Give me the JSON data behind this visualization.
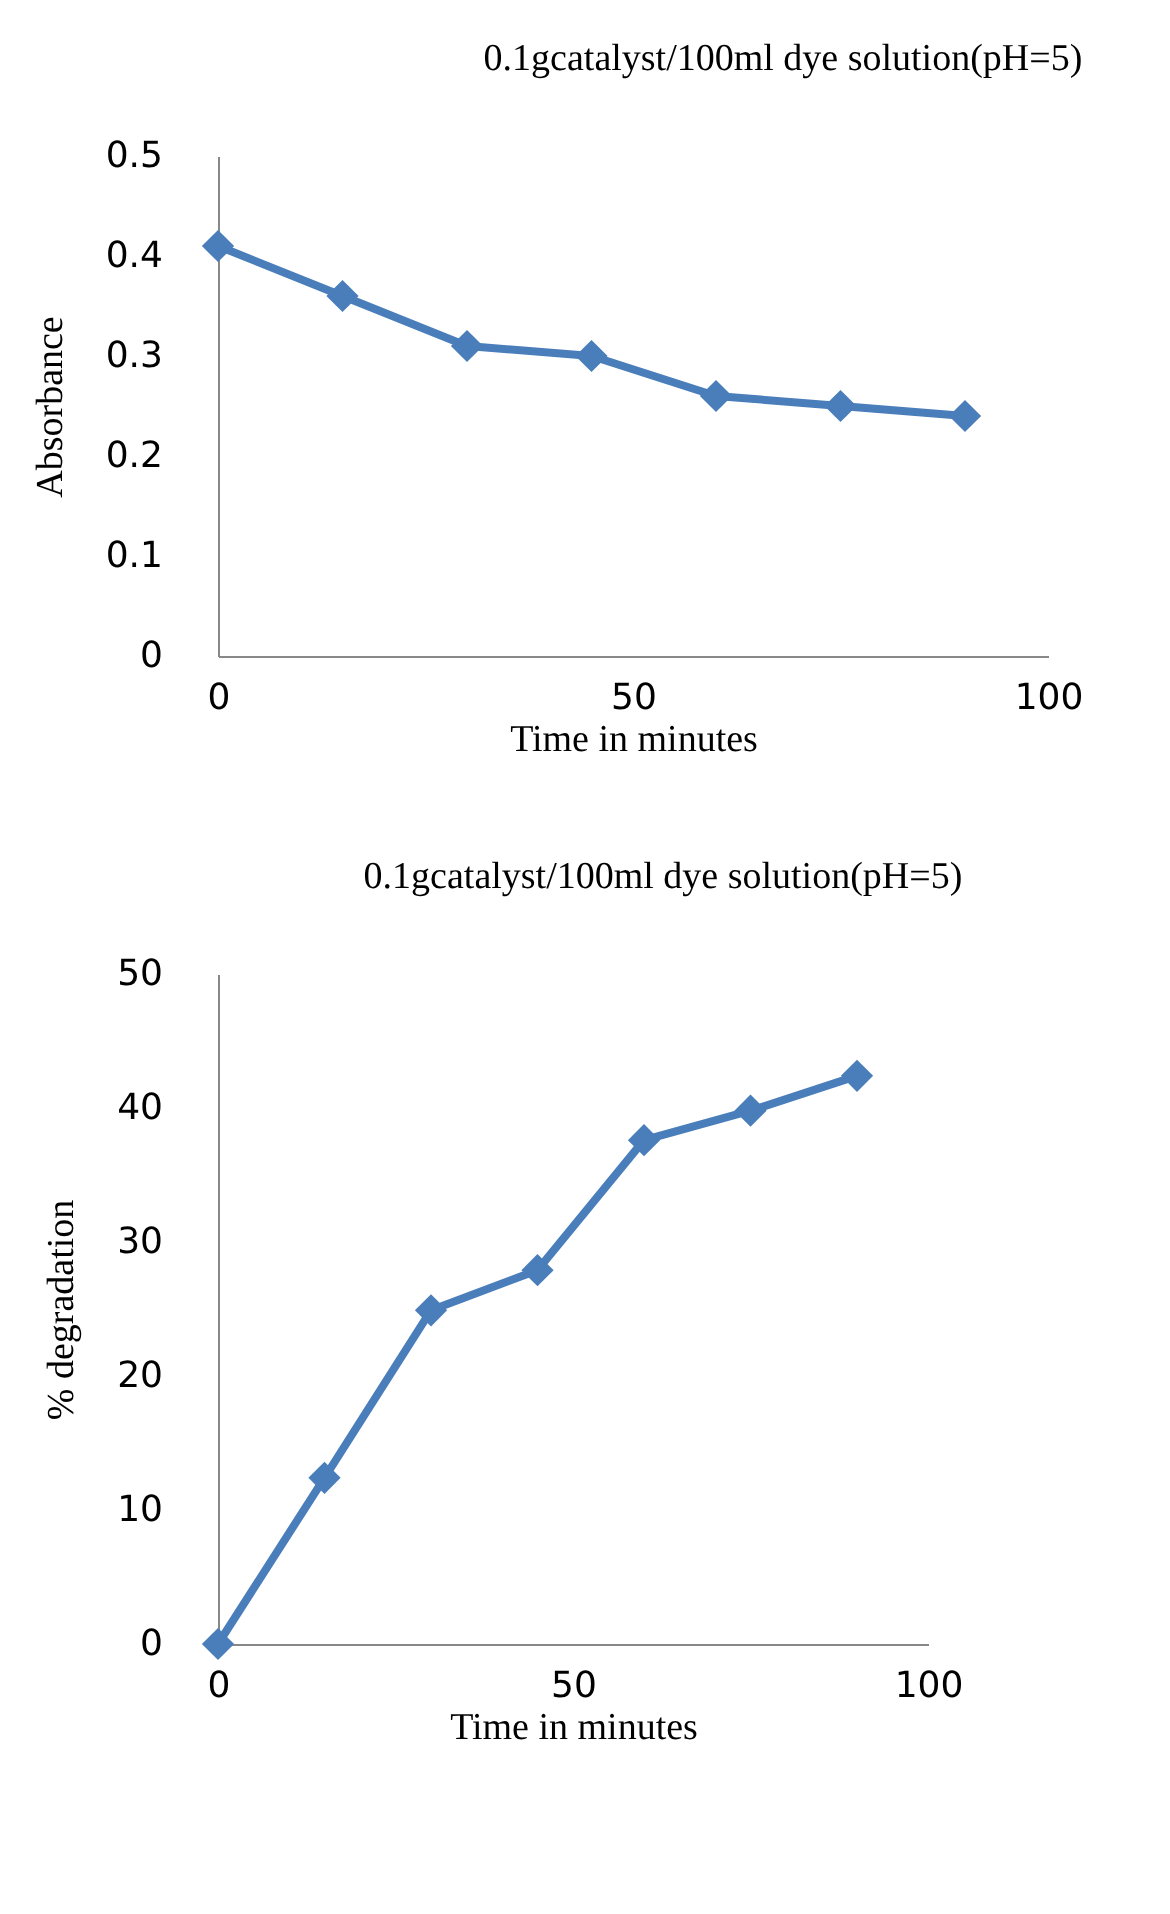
{
  "chart_data": [
    {
      "type": "line",
      "title": "0.1gcatalyst/100ml dye solution(pH=5)",
      "xlabel": "Time in minutes",
      "ylabel": "Absorbance",
      "x": [
        0,
        15,
        30,
        45,
        60,
        75,
        90
      ],
      "series": [
        {
          "color": "#4a7ebb",
          "values": [
            0.41,
            0.36,
            0.31,
            0.3,
            0.26,
            0.25,
            0.24
          ]
        }
      ],
      "xlim": [
        0,
        100
      ],
      "xticks": [
        0,
        50,
        100
      ],
      "ylim": [
        0,
        0.5
      ],
      "yticks": [
        {
          "value": 0,
          "label": "0"
        },
        0.1,
        0.2,
        0.3,
        0.4,
        0.5
      ],
      "marker": "diamond",
      "line_style": "solid"
    },
    {
      "type": "line",
      "title": "0.1gcatalyst/100ml dye solution(pH=5)",
      "xlabel": "Time in minutes",
      "ylabel": "% degradation",
      "x": [
        0,
        15,
        30,
        45,
        60,
        75,
        90
      ],
      "series": [
        {
          "color": "#4a7ebb",
          "values": [
            0,
            12.4,
            24.9,
            27.9,
            37.6,
            39.8,
            42.4
          ]
        }
      ],
      "xlim": [
        0,
        100
      ],
      "xticks": [
        0,
        50,
        100
      ],
      "ylim": [
        0,
        50
      ],
      "yticks": [
        0,
        10,
        20,
        30,
        40,
        50
      ],
      "marker": "diamond",
      "line_style": "solid"
    }
  ]
}
